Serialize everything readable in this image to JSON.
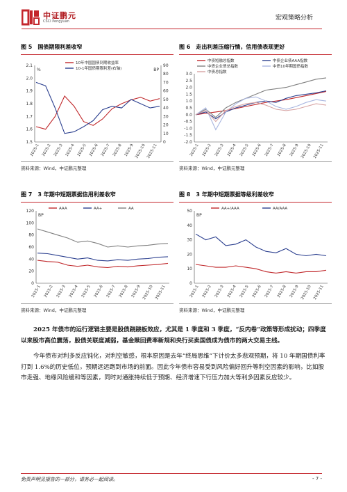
{
  "header": {
    "logo_cn": "中证鹏元",
    "logo_en": "CSCI Pengyuan",
    "section": "宏观策略分析",
    "brand_color": "#c4262c"
  },
  "figures": [
    {
      "num": "图 5",
      "title": "国债期限利差收窄",
      "source": "资料来源：Wind，中证鹏元整理",
      "legend": [
        "10年中国国债到期收益率",
        "10-1年国债期限利差(右轴)"
      ]
    },
    {
      "num": "图 6",
      "title": "走出利差压缩行情，信用债表现更好",
      "source": "资料来源：Wind，中证鹏元整理",
      "legend": [
        "中债短融总指数",
        "中债企业债AAA指数",
        "中债企业债总指数",
        "中债10年期国债指数",
        "中债总指数"
      ]
    },
    {
      "num": "图 7",
      "title": "3 年期中短期票据信用利差收窄",
      "source": "资料来源：Wind，中证鹏元整理",
      "legend": [
        "AAA",
        "AA+",
        "AA"
      ]
    },
    {
      "num": "图 8",
      "title": "3 年期中短期票据等级利差收窄",
      "source": "资料来源：Wind，中证鹏元整理",
      "legend": [
        "AA+/AAA",
        "AA/AAA"
      ]
    }
  ],
  "chart_data": [
    {
      "type": "line",
      "unit_left": "%",
      "unit_right": "BP",
      "yticks_left": [
        "2.1",
        "2.0",
        "1.9",
        "1.8",
        "1.7",
        "1.6",
        "1.5"
      ],
      "yticks_right": [
        "90",
        "80",
        "70",
        "60",
        "50",
        "40",
        "30",
        "20",
        "10",
        "0"
      ],
      "ylim_left": [
        1.5,
        2.1
      ],
      "ylim_right": [
        0,
        90
      ],
      "xticks": [
        "2025-1",
        "2025-2",
        "2025-3",
        "2025-4",
        "2025-5",
        "2025-6",
        "2025-7",
        "2025-8",
        "2025-9",
        "2025-10",
        "2025-11"
      ],
      "series": [
        {
          "name": "10年中国国债到期收益率",
          "color": "#c0282b",
          "axis": "left",
          "values": [
            1.62,
            1.6,
            1.7,
            1.86,
            1.78,
            1.66,
            1.63,
            1.68,
            1.76,
            1.8,
            1.83,
            1.85,
            1.82,
            1.84
          ]
        },
        {
          "name": "10-1年国债期限利差(右轴)",
          "color": "#2b3f8f",
          "axis": "right",
          "values": [
            70,
            66,
            40,
            10,
            12,
            18,
            25,
            38,
            42,
            40,
            50,
            45,
            40,
            42
          ]
        }
      ]
    },
    {
      "type": "line",
      "yticks": [
        "3.0",
        "2.5",
        "2.0",
        "1.5",
        "1.0",
        "0.5",
        "0.0",
        "-0.5",
        "-1.0",
        "-1.5",
        "-2.0"
      ],
      "ylim": [
        -2.0,
        3.0
      ],
      "xticks": [
        "2025-1",
        "2025-2",
        "2025-3",
        "2025-4",
        "2025-5",
        "2025-6",
        "2025-7",
        "2025-8",
        "2025-9",
        "2025-10",
        "2025-11"
      ],
      "series": [
        {
          "name": "中债短融总指数",
          "color": "#c0282b",
          "values": [
            0.0,
            0.1,
            0.2,
            0.3,
            0.45,
            0.6,
            0.75,
            0.9,
            1.0,
            1.1,
            1.25,
            1.4,
            1.55,
            1.7
          ]
        },
        {
          "name": "中债企业债AAA指数",
          "color": "#2b3f8f",
          "values": [
            0.0,
            0.2,
            -0.3,
            0.2,
            0.5,
            0.7,
            0.9,
            1.0,
            0.9,
            1.2,
            1.4,
            1.5,
            1.6,
            1.75
          ]
        },
        {
          "name": "中债企业债总指数",
          "color": "#7f7f7f",
          "values": [
            0.0,
            0.4,
            -0.2,
            0.5,
            0.9,
            1.2,
            1.5,
            1.8,
            1.9,
            2.0,
            2.2,
            2.4,
            2.6,
            2.7
          ]
        },
        {
          "name": "中债10年期国债指数",
          "color": "#a9b6e0",
          "values": [
            0.0,
            0.5,
            -1.1,
            0.2,
            0.8,
            1.2,
            1.3,
            1.0,
            0.6,
            0.4,
            0.6,
            0.9,
            1.1,
            1.0
          ]
        },
        {
          "name": "中债总指数",
          "color": "#d7a3a3",
          "values": [
            0.0,
            0.3,
            -0.5,
            0.3,
            0.6,
            0.8,
            0.9,
            0.7,
            0.4,
            0.3,
            0.4,
            0.6,
            0.8,
            0.7
          ]
        }
      ]
    },
    {
      "type": "line",
      "unit": "BP",
      "yticks": [
        "120",
        "100",
        "80",
        "60",
        "40",
        "20",
        "0"
      ],
      "ylim": [
        0,
        120
      ],
      "xticks": [
        "2025-1",
        "2025-2",
        "2025-3",
        "2025-4",
        "2025-5",
        "2025-6",
        "2025-7",
        "2025-8",
        "2025-9",
        "2025-10",
        "2025-11"
      ],
      "series": [
        {
          "name": "AAA",
          "color": "#c0282b",
          "values": [
            38,
            36,
            35,
            30,
            28,
            30,
            27,
            26,
            28,
            27,
            29,
            30,
            31,
            33
          ]
        },
        {
          "name": "AA+",
          "color": "#2b3f8f",
          "values": [
            50,
            49,
            46,
            43,
            40,
            42,
            38,
            37,
            39,
            38,
            40,
            41,
            43,
            44
          ]
        },
        {
          "name": "AA",
          "color": "#7f7f7f",
          "values": [
            90,
            85,
            80,
            75,
            68,
            70,
            66,
            60,
            62,
            60,
            62,
            63,
            65,
            66
          ]
        }
      ]
    },
    {
      "type": "line",
      "unit": "BP",
      "yticks": [
        "50",
        "40",
        "30",
        "20",
        "10",
        "0"
      ],
      "ylim": [
        0,
        50
      ],
      "xticks": [
        "2025-1",
        "2025-2",
        "2025-3",
        "2025-4",
        "2025-5",
        "2025-6",
        "2025-7",
        "2025-8",
        "2025-9",
        "2025-10",
        "2025-11"
      ],
      "series": [
        {
          "name": "AA+/AAA",
          "color": "#c0282b",
          "values": [
            13,
            12,
            11,
            11,
            12,
            11,
            10,
            8,
            7,
            8,
            7,
            8,
            8,
            9
          ]
        },
        {
          "name": "AA/AAA",
          "color": "#2b3f8f",
          "values": [
            34,
            30,
            32,
            26,
            27,
            30,
            25,
            22,
            21,
            24,
            20,
            19,
            20,
            19
          ]
        }
      ]
    }
  ],
  "body": {
    "p1_bold": "2025 年债市的运行逻辑主要是股债跷跷板效应，尤其是 1 季度和 3 季度，“反内卷”政策等形成扰动；四季度以来股市高位震荡，股债关联度减弱，基金赎回费率新规和央行买卖国债成为债市的两大交易主线。",
    "p2": "今年债市对利多反应钝化，对利空敏感，根本原因是去年“终局思维”下计价太多悲观预期，将 10 年期国债利率打到 1.6%的历史低位，预期远远跑到市场的前面。因此今年债市容易受到风险偏好回升等利空因素的影响，比如股市走强、地缘风险缓和等因素，同时对通胀持续低于预期、经济增速下行压力加大等利多因素反应较少。"
  },
  "footer": {
    "disclaimer": "免责声明见报告的一部分，请务必一起阅读。",
    "page": "- 7 -"
  }
}
